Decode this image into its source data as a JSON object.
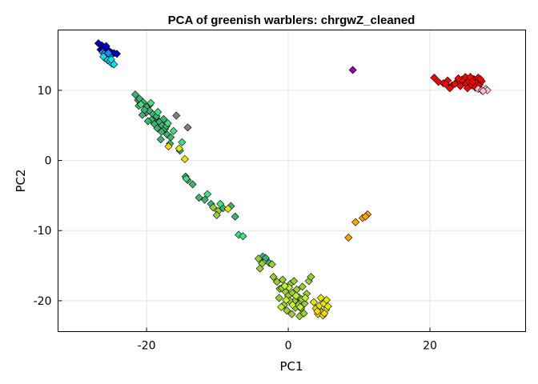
{
  "chart_data": {
    "type": "scatter",
    "title": "PCA of greenish warblers: chrgwZ_cleaned",
    "xlabel": "PC1",
    "ylabel": "PC2",
    "xlim": [
      -32.5,
      33.5
    ],
    "ylim": [
      -24.4,
      18.6
    ],
    "xticks": [
      -20,
      0,
      20
    ],
    "yticks": [
      -20,
      -10,
      0,
      10
    ],
    "xtick_labels": [
      "-20",
      "0",
      "20"
    ],
    "ytick_labels": [
      "-20",
      "-10",
      "0",
      "10"
    ],
    "grid": true,
    "legend": "none",
    "marker": "diamond",
    "series": [
      {
        "color": "#0000c8",
        "points": [
          [
            -26.8,
            16.7
          ],
          [
            -26.3,
            16.4
          ],
          [
            -26.0,
            16.1
          ],
          [
            -25.6,
            15.9
          ],
          [
            -25.3,
            15.6
          ],
          [
            -25.0,
            15.4
          ],
          [
            -24.6,
            15.3
          ],
          [
            -24.2,
            15.2
          ],
          [
            -26.5,
            15.8
          ],
          [
            -25.9,
            15.5
          ],
          [
            -26.2,
            15.9
          ],
          [
            -25.7,
            16.3
          ]
        ]
      },
      {
        "color": "#1e90ff",
        "points": [
          [
            -26.2,
            15.4
          ],
          [
            -25.8,
            15.1
          ],
          [
            -25.5,
            15.0
          ],
          [
            -25.2,
            14.9
          ],
          [
            -26.0,
            15.2
          ],
          [
            -25.4,
            15.3
          ]
        ]
      },
      {
        "color": "#00e5ee",
        "points": [
          [
            -25.9,
            14.6
          ],
          [
            -25.5,
            14.3
          ],
          [
            -25.2,
            14.1
          ],
          [
            -24.9,
            13.8
          ],
          [
            -24.6,
            13.7
          ],
          [
            -26.1,
            14.8
          ],
          [
            -25.0,
            14.4
          ]
        ]
      },
      {
        "color": "#9b009b",
        "points": [
          [
            9.1,
            12.9
          ]
        ]
      },
      {
        "color": "#ff0000",
        "points": [
          [
            20.6,
            11.8
          ],
          [
            21.2,
            11.2
          ],
          [
            21.9,
            11.0
          ],
          [
            22.5,
            11.4
          ],
          [
            23.1,
            10.7
          ],
          [
            23.8,
            11.2
          ],
          [
            24.2,
            11.0
          ],
          [
            24.8,
            11.6
          ],
          [
            25.1,
            10.9
          ],
          [
            25.5,
            11.3
          ],
          [
            25.9,
            10.7
          ],
          [
            26.2,
            11.6
          ],
          [
            26.5,
            11.1
          ],
          [
            26.8,
            11.8
          ],
          [
            27.0,
            10.8
          ],
          [
            27.3,
            11.3
          ],
          [
            25.0,
            11.9
          ],
          [
            24.5,
            11.5
          ],
          [
            23.5,
            10.9
          ],
          [
            22.8,
            10.3
          ],
          [
            22.2,
            10.9
          ],
          [
            25.7,
            11.9
          ],
          [
            26.4,
            10.4
          ],
          [
            24.0,
            11.7
          ],
          [
            26.0,
            11.2
          ],
          [
            27.1,
            11.6
          ],
          [
            24.3,
            10.6
          ],
          [
            25.3,
            10.3
          ]
        ]
      },
      {
        "color": "#ffc0cb",
        "points": [
          [
            26.8,
            10.2
          ],
          [
            27.3,
            10.0
          ],
          [
            27.9,
            10.2
          ],
          [
            28.1,
            10.0
          ],
          [
            27.5,
            9.9
          ]
        ]
      },
      {
        "color": "#808080",
        "points": [
          [
            -15.8,
            6.4
          ],
          [
            -14.2,
            4.7
          ],
          [
            -19.6,
            7.9
          ],
          [
            -21.2,
            8.6
          ],
          [
            -20.1,
            6.8
          ]
        ]
      },
      {
        "color": "#3cb371",
        "points": [
          [
            -21.6,
            9.4
          ],
          [
            -21.0,
            8.8
          ],
          [
            -20.5,
            8.3
          ],
          [
            -20.0,
            7.6
          ],
          [
            -19.6,
            7.1
          ],
          [
            -19.1,
            6.6
          ],
          [
            -18.7,
            6.1
          ],
          [
            -18.2,
            5.5
          ],
          [
            -17.8,
            5.0
          ],
          [
            -17.4,
            4.5
          ],
          [
            -21.1,
            7.8
          ],
          [
            -20.6,
            6.5
          ],
          [
            -19.3,
            5.8
          ],
          [
            -18.9,
            5.2
          ],
          [
            -18.5,
            4.6
          ],
          [
            -17.9,
            4.1
          ],
          [
            -17.1,
            3.7
          ],
          [
            -16.6,
            3.3
          ],
          [
            -19.8,
            5.6
          ],
          [
            -20.3,
            7.2
          ],
          [
            -18.0,
            3.0
          ],
          [
            -16.7,
            2.4
          ],
          [
            -15.3,
            1.4
          ],
          [
            -14.5,
            -2.3
          ],
          [
            -14.2,
            -2.8
          ],
          [
            -13.5,
            -3.4
          ],
          [
            -12.6,
            -5.3
          ],
          [
            -11.8,
            -5.6
          ],
          [
            -10.9,
            -6.2
          ],
          [
            -9.2,
            -6.8
          ],
          [
            -8.1,
            -6.5
          ],
          [
            -7.5,
            -8.0
          ],
          [
            -3.6,
            -13.7
          ],
          [
            -3.2,
            -13.9
          ],
          [
            -2.7,
            -14.6
          ],
          [
            -17.6,
            5.9
          ],
          [
            -18.6,
            6.3
          ],
          [
            -17.2,
            4.9
          ]
        ]
      },
      {
        "color": "#40e080",
        "points": [
          [
            -20.8,
            8.0
          ],
          [
            -19.4,
            8.2
          ],
          [
            -18.4,
            6.9
          ],
          [
            -17.0,
            5.3
          ],
          [
            -16.2,
            4.2
          ],
          [
            -15.0,
            2.6
          ],
          [
            -14.4,
            -2.6
          ],
          [
            -11.4,
            -4.8
          ],
          [
            -9.6,
            -6.2
          ],
          [
            -7.0,
            -10.6
          ],
          [
            -6.4,
            -10.8
          ]
        ]
      },
      {
        "color": "#9acd32",
        "points": [
          [
            -9.9,
            -7.2
          ],
          [
            -10.1,
            -7.8
          ],
          [
            -10.6,
            -6.7
          ],
          [
            -4.2,
            -14.0
          ],
          [
            -3.7,
            -14.7
          ],
          [
            -4.0,
            -15.4
          ],
          [
            -2.3,
            -14.8
          ],
          [
            -2.1,
            -16.6
          ],
          [
            -1.6,
            -17.3
          ],
          [
            -1.2,
            -18.3
          ],
          [
            -0.8,
            -17.0
          ],
          [
            -0.4,
            -18.7
          ],
          [
            0.0,
            -19.3
          ],
          [
            0.3,
            -17.6
          ],
          [
            0.6,
            -18.9
          ],
          [
            0.9,
            -20.0
          ],
          [
            1.2,
            -18.4
          ],
          [
            1.5,
            -19.5
          ],
          [
            1.8,
            -21.1
          ],
          [
            2.0,
            -18.0
          ],
          [
            2.3,
            -20.4
          ],
          [
            2.6,
            -19.0
          ],
          [
            -0.6,
            -20.6
          ],
          [
            -0.2,
            -21.4
          ],
          [
            0.5,
            -21.9
          ],
          [
            1.0,
            -21.0
          ],
          [
            1.6,
            -22.2
          ],
          [
            -1.3,
            -19.6
          ],
          [
            2.9,
            -17.2
          ],
          [
            3.2,
            -16.6
          ],
          [
            0.2,
            -20.0
          ],
          [
            1.4,
            -20.6
          ],
          [
            -0.9,
            -18.2
          ],
          [
            0.8,
            -17.2
          ],
          [
            2.2,
            -21.8
          ],
          [
            1.9,
            -19.8
          ]
        ]
      },
      {
        "color": "#c6f032",
        "points": [
          [
            -0.3,
            -19.9
          ],
          [
            0.6,
            -20.6
          ],
          [
            1.1,
            -19.3
          ],
          [
            -1.0,
            -20.9
          ],
          [
            1.7,
            -20.9
          ],
          [
            2.4,
            -19.6
          ],
          [
            0.1,
            -18.1
          ],
          [
            -0.5,
            -17.9
          ]
        ]
      },
      {
        "color": "#e5e500",
        "points": [
          [
            -8.5,
            -6.9
          ],
          [
            -14.6,
            0.2
          ],
          [
            -15.4,
            1.7
          ],
          [
            3.9,
            -21.1
          ],
          [
            4.4,
            -20.7
          ],
          [
            4.7,
            -21.6
          ],
          [
            5.0,
            -20.4
          ],
          [
            5.3,
            -21.3
          ],
          [
            5.6,
            -20.8
          ],
          [
            4.2,
            -21.9
          ],
          [
            4.9,
            -22.1
          ],
          [
            5.4,
            -19.9
          ],
          [
            3.6,
            -20.2
          ],
          [
            4.6,
            -19.6
          ]
        ]
      },
      {
        "color": "#ffd700",
        "points": [
          [
            -16.9,
            2.0
          ],
          [
            4.1,
            -21.5
          ],
          [
            5.1,
            -21.8
          ]
        ]
      },
      {
        "color": "#ffa500",
        "points": [
          [
            8.5,
            -11.0
          ],
          [
            9.5,
            -8.8
          ],
          [
            10.5,
            -8.2
          ],
          [
            11.2,
            -7.7
          ],
          [
            10.9,
            -8.0
          ]
        ]
      }
    ]
  }
}
